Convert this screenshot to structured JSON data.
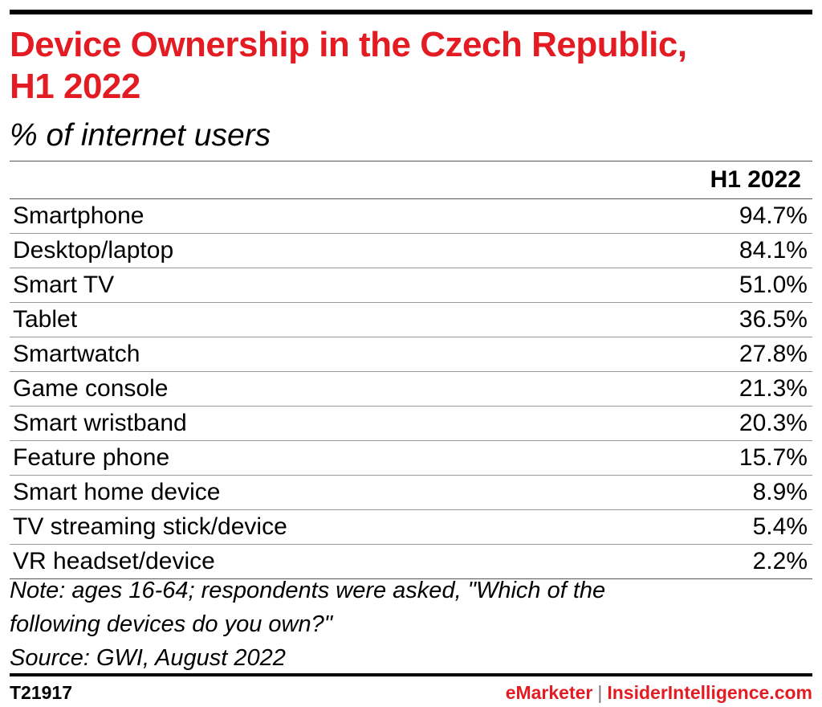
{
  "chart_data": {
    "type": "table",
    "title_line1": "Device Ownership in the Czech Republic,",
    "title_line2": "H1 2022",
    "subtitle": "% of internet users",
    "column_header": "H1 2022",
    "rows": [
      {
        "label": "Smartphone",
        "display": "94.7%",
        "value": 94.7
      },
      {
        "label": "Desktop/laptop",
        "display": "84.1%",
        "value": 84.1
      },
      {
        "label": "Smart TV",
        "display": "51.0%",
        "value": 51.0
      },
      {
        "label": "Tablet",
        "display": "36.5%",
        "value": 36.5
      },
      {
        "label": "Smartwatch",
        "display": "27.8%",
        "value": 27.8
      },
      {
        "label": "Game console",
        "display": "21.3%",
        "value": 21.3
      },
      {
        "label": "Smart wristband",
        "display": "20.3%",
        "value": 20.3
      },
      {
        "label": "Feature phone",
        "display": "15.7%",
        "value": 15.7
      },
      {
        "label": "Smart home device",
        "display": "8.9%",
        "value": 8.9
      },
      {
        "label": "TV streaming stick/device",
        "display": "5.4%",
        "value": 5.4
      },
      {
        "label": "VR headset/device",
        "display": "2.2%",
        "value": 2.2
      }
    ],
    "note_line1": "Note: ages 16-64; respondents were asked, \"Which of the",
    "note_line2": "following devices do you own?\"",
    "source": "Source: GWI, August 2022"
  },
  "footer": {
    "chart_id": "T21917",
    "brand_left": "eMarketer",
    "brand_divider": "|",
    "brand_right": "InsiderIntelligence.com"
  },
  "colors": {
    "title": "#e31b23",
    "brand": "#e31b23",
    "text": "#000000"
  }
}
